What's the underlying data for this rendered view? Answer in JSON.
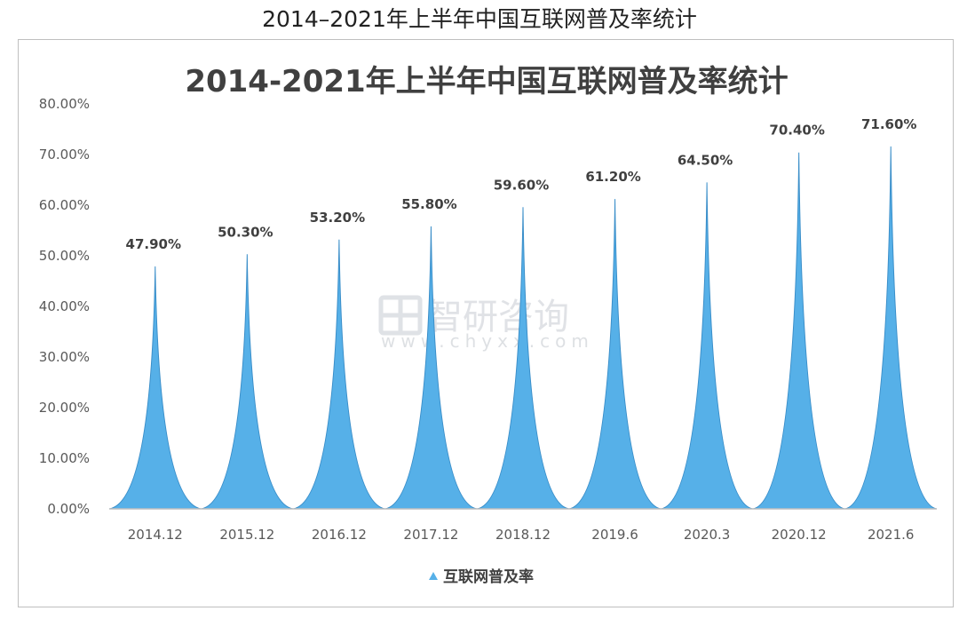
{
  "page_heading": "2014–2021年上半年中国互联网普及率统计",
  "watermark": {
    "brand": "智研咨询",
    "url": "www.chyxx.com",
    "logo_icon": "chyxx-logo-icon"
  },
  "colors": {
    "series": "#56b0e8",
    "series_edge": "#3a8ec9",
    "axis": "#bfbfbf",
    "text": "#595959"
  },
  "chart_data": {
    "type": "bar",
    "bar_shape": "spike",
    "title": "2014-2021年上半年中国互联网普及率统计",
    "categories": [
      "2014.12",
      "2015.12",
      "2016.12",
      "2017.12",
      "2018.12",
      "2019.6",
      "2020.3",
      "2020.12",
      "2021.6"
    ],
    "series": [
      {
        "name": "互联网普及率",
        "values": [
          47.9,
          50.3,
          53.2,
          55.8,
          59.6,
          61.2,
          64.5,
          70.4,
          71.6
        ]
      }
    ],
    "data_labels": [
      "47.90%",
      "50.30%",
      "53.20%",
      "55.80%",
      "59.60%",
      "61.20%",
      "64.50%",
      "70.40%",
      "71.60%"
    ],
    "y_ticks": [
      "0.00%",
      "10.00%",
      "20.00%",
      "30.00%",
      "40.00%",
      "50.00%",
      "60.00%",
      "70.00%",
      "80.00%"
    ],
    "ylim": [
      0,
      80
    ],
    "grid": false,
    "legend_position": "bottom"
  }
}
